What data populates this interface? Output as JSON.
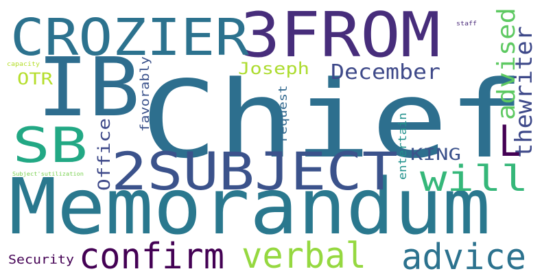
{
  "word_cloud": {
    "background": "#ffffff",
    "words": [
      {
        "text": "Chief",
        "color": "#2d6f8e"
      },
      {
        "text": "Memorandum",
        "color": "#2a788e"
      },
      {
        "text": "IB",
        "color": "#2e6d8e"
      },
      {
        "text": "3FROM",
        "color": "#472d7b"
      },
      {
        "text": "CROZIER",
        "color": "#2c728e"
      },
      {
        "text": "2SUBJECT",
        "color": "#3b528b"
      },
      {
        "text": "SB",
        "color": "#22a884"
      },
      {
        "text": "confirm",
        "color": "#440154"
      },
      {
        "text": "verbal",
        "color": "#95d840"
      },
      {
        "text": "advice",
        "color": "#2c728e"
      },
      {
        "text": "will",
        "color": "#35b779"
      },
      {
        "text": "December",
        "color": "#3e4989"
      },
      {
        "text": "advised",
        "color": "#5ec962"
      },
      {
        "text": "thewriter",
        "color": "#3e4989"
      },
      {
        "text": "L",
        "color": "#440154"
      },
      {
        "text": "Joseph",
        "color": "#addc30"
      },
      {
        "text": "OTR",
        "color": "#b5de2b"
      },
      {
        "text": "KING",
        "color": "#3b528b"
      },
      {
        "text": "Office",
        "color": "#3e4989"
      },
      {
        "text": "favorably",
        "color": "#3b528b"
      },
      {
        "text": "request",
        "color": "#31688e"
      },
      {
        "text": "entertain",
        "color": "#21918c"
      },
      {
        "text": "Security",
        "color": "#440154"
      },
      {
        "text": "staff",
        "color": "#482878"
      },
      {
        "text": "capacity",
        "color": "#b5de2b"
      },
      {
        "text": "Subject'sutilization",
        "color": "#7ad151"
      }
    ]
  }
}
